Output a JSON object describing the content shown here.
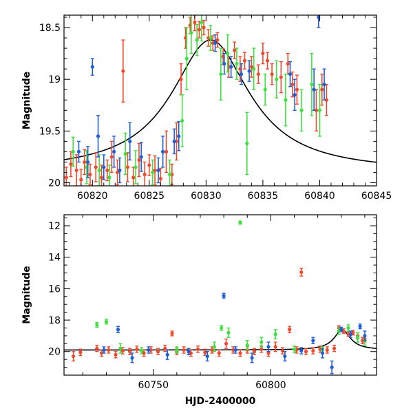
{
  "colors": {
    "blue": "#1f5fd6",
    "green": "#3fe040",
    "red": "#f04a2c",
    "model": "#000000"
  },
  "chart_data": [
    {
      "type": "scatter",
      "panel": "top",
      "ylabel": "Magnitude",
      "xlabel": "",
      "xlim": [
        60817.5,
        60845
      ],
      "ylim": [
        20.03,
        18.38
      ],
      "y_inverted": true,
      "x_ticks": [
        "60820",
        "60825",
        "60830",
        "60835",
        "60840",
        "60845"
      ],
      "y_ticks": [
        "18.5",
        "19",
        "19.5",
        "20"
      ],
      "grid": false,
      "legend": "none",
      "model_curve": {
        "peak_x": 60830.4,
        "peak_mag": 18.62,
        "baseline_mag": 19.9,
        "width_days": 4.2
      },
      "series": [
        {
          "color_key": "red",
          "points": [
            [
              60817.7,
              19.95
            ],
            [
              60818.1,
              19.82
            ],
            [
              60818.6,
              19.88
            ],
            [
              60819.0,
              19.97
            ],
            [
              60819.3,
              19.8
            ],
            [
              60819.8,
              19.92
            ],
            [
              60820.3,
              19.85
            ],
            [
              60820.8,
              19.95
            ],
            [
              60821.3,
              19.88
            ],
            [
              60821.7,
              19.75
            ],
            [
              60822.2,
              19.9
            ],
            [
              60822.7,
              18.92
            ],
            [
              60823.1,
              19.85
            ],
            [
              60823.6,
              19.95
            ],
            [
              60824.1,
              19.78
            ],
            [
              60824.6,
              19.92
            ],
            [
              60825.0,
              19.83
            ],
            [
              60825.5,
              19.88
            ],
            [
              60826.0,
              19.96
            ],
            [
              60826.5,
              19.7
            ],
            [
              60827.0,
              19.92
            ],
            [
              60827.4,
              19.6
            ],
            [
              60827.8,
              19.0
            ],
            [
              60828.2,
              18.6
            ],
            [
              60828.6,
              18.48
            ],
            [
              60829.0,
              18.45
            ],
            [
              60829.4,
              18.52
            ],
            [
              60829.8,
              18.5
            ],
            [
              60830.2,
              18.6
            ],
            [
              60830.6,
              18.65
            ],
            [
              60831.0,
              18.62
            ],
            [
              60831.5,
              18.78
            ],
            [
              60832.0,
              18.88
            ],
            [
              60832.5,
              18.72
            ],
            [
              60833.0,
              18.9
            ],
            [
              60833.4,
              18.82
            ],
            [
              60834.0,
              18.88
            ],
            [
              60834.6,
              18.95
            ],
            [
              60835.0,
              18.75
            ],
            [
              60835.4,
              18.82
            ],
            [
              60835.8,
              18.95
            ],
            [
              60836.6,
              18.98
            ],
            [
              60837.2,
              18.85
            ],
            [
              60837.6,
              19.05
            ],
            [
              60838.0,
              19.1
            ],
            [
              60839.7,
              19.3
            ],
            [
              60840.2,
              19.1
            ],
            [
              60840.6,
              19.2
            ]
          ],
          "errors": [
            0.1,
            0.12,
            0.15,
            0.1,
            0.12,
            0.1,
            0.14,
            0.12,
            0.1,
            0.15,
            0.12,
            0.3,
            0.14,
            0.1,
            0.16,
            0.12,
            0.1,
            0.14,
            0.1,
            0.2,
            0.1,
            0.18,
            0.15,
            0.1,
            0.08,
            0.08,
            0.08,
            0.07,
            0.08,
            0.07,
            0.07,
            0.08,
            0.1,
            0.08,
            0.12,
            0.08,
            0.1,
            0.09,
            0.1,
            0.08,
            0.1,
            0.15,
            0.1,
            0.12,
            0.14,
            0.2,
            0.15,
            0.15
          ]
        },
        {
          "color_key": "green",
          "points": [
            [
              60818.3,
              19.7
            ],
            [
              60819.5,
              19.85
            ],
            [
              60820.6,
              19.88
            ],
            [
              60821.5,
              19.95
            ],
            [
              60822.9,
              19.72
            ],
            [
              60823.8,
              19.85
            ],
            [
              60825.3,
              19.9
            ],
            [
              60826.8,
              19.92
            ],
            [
              60827.9,
              19.4
            ],
            [
              60828.3,
              18.8
            ],
            [
              60828.7,
              18.55
            ],
            [
              60829.2,
              18.62
            ],
            [
              60829.6,
              18.45
            ],
            [
              60830.4,
              18.6
            ],
            [
              60831.3,
              18.95
            ],
            [
              60831.9,
              18.75
            ],
            [
              60832.7,
              18.85
            ],
            [
              60833.6,
              19.62
            ],
            [
              60834.2,
              18.9
            ],
            [
              60835.2,
              19.1
            ],
            [
              60836.2,
              19.0
            ],
            [
              60837.0,
              19.2
            ],
            [
              60838.4,
              19.3
            ],
            [
              60839.3,
              19.05
            ],
            [
              60840.0,
              19.3
            ]
          ],
          "errors": [
            0.14,
            0.16,
            0.15,
            0.12,
            0.2,
            0.16,
            0.12,
            0.14,
            0.25,
            0.3,
            0.2,
            0.15,
            0.18,
            0.12,
            0.25,
            0.18,
            0.15,
            0.3,
            0.2,
            0.15,
            0.18,
            0.25,
            0.2,
            0.3,
            0.25
          ]
        },
        {
          "color_key": "blue",
          "points": [
            [
              60818.8,
              19.7
            ],
            [
              60819.6,
              19.8
            ],
            [
              60820.0,
              18.88
            ],
            [
              60820.5,
              19.55
            ],
            [
              60821.0,
              19.85
            ],
            [
              60821.9,
              19.7
            ],
            [
              60822.4,
              19.88
            ],
            [
              60823.3,
              19.6
            ],
            [
              60824.3,
              19.75
            ],
            [
              60825.8,
              19.88
            ],
            [
              60826.2,
              19.7
            ],
            [
              60827.2,
              19.6
            ],
            [
              60827.6,
              19.55
            ],
            [
              60830.8,
              18.65
            ],
            [
              60831.6,
              18.85
            ],
            [
              60832.2,
              18.88
            ],
            [
              60833.1,
              18.95
            ],
            [
              60833.8,
              18.92
            ],
            [
              60837.4,
              18.95
            ],
            [
              60837.8,
              19.15
            ],
            [
              60839.5,
              19.1
            ],
            [
              60839.9,
              18.4
            ],
            [
              60840.4,
              19.05
            ]
          ],
          "errors": [
            0.1,
            0.15,
            0.08,
            0.2,
            0.12,
            0.15,
            0.12,
            0.18,
            0.14,
            0.12,
            0.15,
            0.12,
            0.14,
            0.08,
            0.1,
            0.1,
            0.1,
            0.1,
            0.12,
            0.15,
            0.2,
            0.1,
            0.15
          ]
        }
      ]
    },
    {
      "type": "scatter",
      "panel": "bottom",
      "ylabel": "Magnitude",
      "xlabel": "HJD-2400000",
      "xlim": [
        60712,
        60845
      ],
      "ylim": [
        21.5,
        11.3
      ],
      "y_inverted": true,
      "x_ticks": [
        "60750",
        "60800"
      ],
      "y_ticks": [
        "12",
        "14",
        "16",
        "18",
        "20"
      ],
      "grid": false,
      "legend": "none",
      "model_curve": {
        "peak_x": 60830.4,
        "peak_mag": 18.62,
        "baseline_mag": 19.9,
        "width_days": 4.2
      },
      "series": [
        {
          "color_key": "red",
          "points": [
            [
              60716,
              20.3
            ],
            [
              60719,
              20.05
            ],
            [
              60726,
              19.8
            ],
            [
              60728,
              20.1
            ],
            [
              60731,
              19.9
            ],
            [
              60734,
              20.2
            ],
            [
              60737,
              19.95
            ],
            [
              60740,
              20.0
            ],
            [
              60743,
              19.85
            ],
            [
              60746,
              20.1
            ],
            [
              60749,
              19.9
            ],
            [
              60752,
              20.0
            ],
            [
              60755,
              19.8
            ],
            [
              60758,
              18.85
            ],
            [
              60760,
              20.0
            ],
            [
              60763,
              19.9
            ],
            [
              60766,
              20.1
            ],
            [
              60769,
              19.85
            ],
            [
              60772,
              20.05
            ],
            [
              60775,
              19.9
            ],
            [
              60778,
              20.1
            ],
            [
              60781,
              19.5
            ],
            [
              60784,
              19.9
            ],
            [
              60787,
              20.1
            ],
            [
              60790,
              19.9
            ],
            [
              60793,
              20.0
            ],
            [
              60796,
              19.85
            ],
            [
              60799,
              20.1
            ],
            [
              60802,
              19.7
            ],
            [
              60805,
              19.95
            ],
            [
              60808,
              18.6
            ],
            [
              60811,
              19.9
            ],
            [
              60813,
              14.95
            ],
            [
              60815,
              20.0
            ],
            [
              60818,
              19.95
            ],
            [
              60821,
              19.85
            ],
            [
              60824,
              19.9
            ],
            [
              60827,
              19.8
            ],
            [
              60829,
              18.5
            ],
            [
              60831,
              18.7
            ],
            [
              60833,
              18.9
            ],
            [
              60835,
              18.8
            ],
            [
              60837,
              19.0
            ],
            [
              60839,
              19.3
            ],
            [
              60840,
              19.2
            ]
          ],
          "errors": [
            0.3,
            0.2,
            0.2,
            0.2,
            0.2,
            0.2,
            0.2,
            0.2,
            0.2,
            0.2,
            0.2,
            0.2,
            0.2,
            0.15,
            0.2,
            0.2,
            0.2,
            0.2,
            0.2,
            0.2,
            0.2,
            0.3,
            0.2,
            0.2,
            0.2,
            0.2,
            0.2,
            0.2,
            0.3,
            0.2,
            0.2,
            0.2,
            0.25,
            0.2,
            0.2,
            0.2,
            0.2,
            0.2,
            0.15,
            0.15,
            0.15,
            0.15,
            0.2,
            0.2,
            0.2
          ]
        },
        {
          "color_key": "green",
          "points": [
            [
              60726,
              18.3
            ],
            [
              60730,
              18.1
            ],
            [
              60736,
              19.8
            ],
            [
              60745,
              19.95
            ],
            [
              60760,
              19.9
            ],
            [
              60776,
              19.7
            ],
            [
              60779,
              18.5
            ],
            [
              60782,
              18.8
            ],
            [
              60787,
              11.8
            ],
            [
              60790,
              19.6
            ],
            [
              60796,
              19.4
            ],
            [
              60802,
              18.9
            ],
            [
              60810,
              19.85
            ],
            [
              60822,
              19.9
            ],
            [
              60829,
              18.7
            ],
            [
              60833,
              18.5
            ],
            [
              60837,
              19.1
            ],
            [
              60840,
              19.3
            ]
          ],
          "errors": [
            0.15,
            0.15,
            0.3,
            0.2,
            0.2,
            0.3,
            0.15,
            0.3,
            0.1,
            0.3,
            0.3,
            0.3,
            0.2,
            0.2,
            0.2,
            0.2,
            0.3,
            0.3
          ]
        },
        {
          "color_key": "blue",
          "points": [
            [
              60729,
              19.9
            ],
            [
              60735,
              18.6
            ],
            [
              60741,
              20.4
            ],
            [
              60748,
              19.9
            ],
            [
              60756,
              20.2
            ],
            [
              60765,
              20.0
            ],
            [
              60773,
              20.3
            ],
            [
              60780,
              16.45
            ],
            [
              60785,
              19.9
            ],
            [
              60792,
              20.4
            ],
            [
              60799,
              19.7
            ],
            [
              60806,
              20.3
            ],
            [
              60813,
              19.95
            ],
            [
              60818,
              19.3
            ],
            [
              60822,
              20.1
            ],
            [
              60826,
              21.0
            ],
            [
              60830,
              18.6
            ],
            [
              60834,
              18.9
            ],
            [
              60838,
              18.4
            ],
            [
              60840,
              19.0
            ]
          ],
          "errors": [
            0.2,
            0.2,
            0.3,
            0.2,
            0.3,
            0.2,
            0.3,
            0.15,
            0.2,
            0.3,
            0.3,
            0.3,
            0.2,
            0.2,
            0.3,
            0.4,
            0.15,
            0.2,
            0.15,
            0.3
          ]
        }
      ]
    }
  ]
}
